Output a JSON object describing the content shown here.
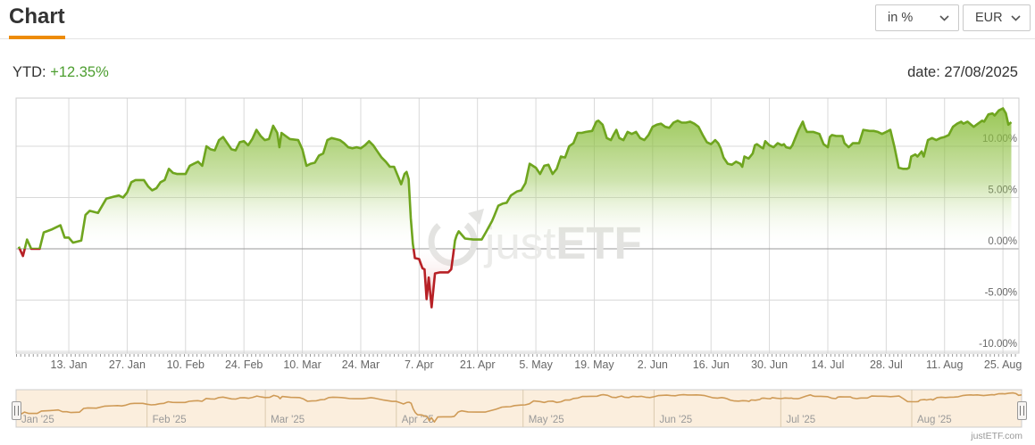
{
  "header": {
    "title": "Chart",
    "unit_value": "in %",
    "currency_value": "EUR"
  },
  "summary": {
    "ytd_label": "YTD:",
    "ytd_value": "+12.35%",
    "date_text": "date: 27/08/2025"
  },
  "watermark": {
    "text_light": "just",
    "text_bold": "ETF"
  },
  "footer": {
    "branding": "justETF.com"
  },
  "colors": {
    "accent_orange": "#ed8b07",
    "positive_green_text": "#4d9e30",
    "grid": "#d9d9d9",
    "zero_line": "#999999",
    "axis_label": "#666666"
  },
  "chart_data": {
    "type": "area",
    "title": "YTD performance in % (EUR), 01/01/2025 - 27/08/2025",
    "x_unit": "days_since_2025-01-01",
    "ylabel": "%",
    "ylim": [
      -10.1,
      14.8
    ],
    "xlim_days": [
      0,
      238
    ],
    "threshold": 0,
    "grid": true,
    "legend": "none",
    "positive_color": "#6fa51f",
    "positive_fill_top": "#8cbf3f",
    "negative_color": "#b72025",
    "negative_fill_bottom": "#d96a6a",
    "y_ticks": [
      {
        "label": "10.00%",
        "value": 10
      },
      {
        "label": "5.00%",
        "value": 5
      },
      {
        "label": "0.00%",
        "value": 0
      },
      {
        "label": "-5.00%",
        "value": -5
      },
      {
        "label": "-10.00%",
        "value": -10
      }
    ],
    "x_ticks": [
      {
        "label": "13. Jan",
        "day": 12
      },
      {
        "label": "27. Jan",
        "day": 26
      },
      {
        "label": "10. Feb",
        "day": 40
      },
      {
        "label": "24. Feb",
        "day": 54
      },
      {
        "label": "10. Mar",
        "day": 68
      },
      {
        "label": "24. Mar",
        "day": 82
      },
      {
        "label": "7. Apr",
        "day": 96
      },
      {
        "label": "21. Apr",
        "day": 110
      },
      {
        "label": "5. May",
        "day": 124
      },
      {
        "label": "19. May",
        "day": 138
      },
      {
        "label": "2. Jun",
        "day": 152
      },
      {
        "label": "16. Jun",
        "day": 166
      },
      {
        "label": "30. Jun",
        "day": 180
      },
      {
        "label": "14. Jul",
        "day": 194
      },
      {
        "label": "28. Jul",
        "day": 208
      },
      {
        "label": "11. Aug",
        "day": 222
      },
      {
        "label": "25. Aug",
        "day": 236
      }
    ],
    "points": [
      [
        0,
        0.2
      ],
      [
        1,
        -0.7
      ],
      [
        2,
        0.9
      ],
      [
        3,
        0
      ],
      [
        5,
        0
      ],
      [
        6,
        1.6
      ],
      [
        8,
        1.9
      ],
      [
        9,
        2.1
      ],
      [
        10,
        2.3
      ],
      [
        11,
        1.1
      ],
      [
        12,
        1.1
      ],
      [
        13,
        0.6
      ],
      [
        15,
        0.8
      ],
      [
        16,
        3.3
      ],
      [
        17,
        3.7
      ],
      [
        19,
        3.5
      ],
      [
        21,
        4.9
      ],
      [
        23,
        5.1
      ],
      [
        24,
        5.2
      ],
      [
        25,
        5
      ],
      [
        26,
        5.5
      ],
      [
        27,
        6.5
      ],
      [
        28,
        6.7
      ],
      [
        30,
        6.7
      ],
      [
        31,
        6.1
      ],
      [
        32,
        5.7
      ],
      [
        33,
        5.9
      ],
      [
        34,
        6.5
      ],
      [
        35,
        6.7
      ],
      [
        36,
        7.8
      ],
      [
        37,
        7.4
      ],
      [
        38,
        7.3
      ],
      [
        40,
        7.3
      ],
      [
        41,
        8.1
      ],
      [
        42,
        8.3
      ],
      [
        43,
        8.5
      ],
      [
        44,
        8.1
      ],
      [
        45,
        10
      ],
      [
        46,
        9.7
      ],
      [
        47,
        9.6
      ],
      [
        48,
        10.6
      ],
      [
        49,
        10.9
      ],
      [
        50,
        10.3
      ],
      [
        51,
        9.7
      ],
      [
        52,
        9.6
      ],
      [
        53,
        10.4
      ],
      [
        54,
        10.5
      ],
      [
        55,
        10.1
      ],
      [
        56,
        10.7
      ],
      [
        57,
        11.6
      ],
      [
        58,
        11
      ],
      [
        59,
        10.6
      ],
      [
        60,
        10.7
      ],
      [
        61,
        12
      ],
      [
        62,
        11.3
      ],
      [
        62.5,
        9.9
      ],
      [
        63,
        11.3
      ],
      [
        64,
        11
      ],
      [
        65,
        10.7
      ],
      [
        67,
        10.6
      ],
      [
        68,
        9.7
      ],
      [
        69,
        8.1
      ],
      [
        70,
        8.3
      ],
      [
        71,
        8.4
      ],
      [
        72,
        9.1
      ],
      [
        73,
        9.3
      ],
      [
        74,
        10.6
      ],
      [
        75,
        10.8
      ],
      [
        76,
        10.7
      ],
      [
        77,
        10.6
      ],
      [
        78,
        10.3
      ],
      [
        79,
        9.9
      ],
      [
        80,
        9.8
      ],
      [
        81,
        9.9
      ],
      [
        82,
        9.8
      ],
      [
        83,
        10.1
      ],
      [
        84,
        10.5
      ],
      [
        85,
        10.1
      ],
      [
        86,
        9.5
      ],
      [
        87,
        8.9
      ],
      [
        88,
        8.5
      ],
      [
        89,
        8
      ],
      [
        90,
        8
      ],
      [
        91,
        7
      ],
      [
        91.7,
        6.3
      ],
      [
        92.5,
        7.3
      ],
      [
        93,
        7.5
      ],
      [
        93.5,
        6.8
      ],
      [
        94,
        3
      ],
      [
        94.5,
        0.5
      ],
      [
        95,
        -0.9
      ],
      [
        96,
        -1
      ],
      [
        96.8,
        -1.9
      ],
      [
        97.3,
        -2
      ],
      [
        97.8,
        -4.9
      ],
      [
        98.3,
        -2.8
      ],
      [
        99,
        -5.7
      ],
      [
        99.8,
        -2.4
      ],
      [
        101,
        -2.3
      ],
      [
        103,
        -2.3
      ],
      [
        103.7,
        -2
      ],
      [
        104.2,
        -0.5
      ],
      [
        104.6,
        0.8
      ],
      [
        105,
        1.3
      ],
      [
        105.5,
        1.7
      ],
      [
        107,
        1
      ],
      [
        109,
        0.9
      ],
      [
        111,
        0.9
      ],
      [
        112,
        1.6
      ],
      [
        113.5,
        2.7
      ],
      [
        114,
        3.2
      ],
      [
        115,
        4.2
      ],
      [
        116,
        4.4
      ],
      [
        117,
        4.5
      ],
      [
        118,
        5.2
      ],
      [
        119.5,
        5.6
      ],
      [
        120.5,
        5.7
      ],
      [
        121.5,
        6.4
      ],
      [
        122.5,
        8.3
      ],
      [
        124,
        7.9
      ],
      [
        125,
        7.3
      ],
      [
        126,
        8.1
      ],
      [
        127,
        8.2
      ],
      [
        128,
        7.3
      ],
      [
        129,
        7.8
      ],
      [
        130,
        9
      ],
      [
        131,
        8.9
      ],
      [
        132,
        10
      ],
      [
        133,
        10.3
      ],
      [
        134,
        11.3
      ],
      [
        135,
        11.3
      ],
      [
        136,
        11.4
      ],
      [
        137.5,
        11.5
      ],
      [
        138.5,
        12.4
      ],
      [
        139,
        12.5
      ],
      [
        140,
        12.1
      ],
      [
        141,
        10.8
      ],
      [
        142,
        10.6
      ],
      [
        142.6,
        11.1
      ],
      [
        143.3,
        11.6
      ],
      [
        144,
        10.8
      ],
      [
        145,
        10.6
      ],
      [
        146,
        11.4
      ],
      [
        147,
        11.2
      ],
      [
        148,
        11.4
      ],
      [
        149,
        10.8
      ],
      [
        150,
        10.6
      ],
      [
        151,
        11.1
      ],
      [
        152,
        11.9
      ],
      [
        153,
        12.1
      ],
      [
        154,
        12.2
      ],
      [
        155,
        11.9
      ],
      [
        156,
        11.8
      ],
      [
        157,
        12.3
      ],
      [
        158,
        12.5
      ],
      [
        159,
        12.3
      ],
      [
        160,
        12.3
      ],
      [
        161,
        12.4
      ],
      [
        162,
        12.2
      ],
      [
        163,
        11.9
      ],
      [
        164,
        11.1
      ],
      [
        165,
        10.4
      ],
      [
        166,
        10.2
      ],
      [
        167,
        10.6
      ],
      [
        167.7,
        10.3
      ],
      [
        168.3,
        9.8
      ],
      [
        169,
        8.9
      ],
      [
        170,
        8.3
      ],
      [
        171,
        8.2
      ],
      [
        172,
        8.5
      ],
      [
        173,
        8.3
      ],
      [
        173.5,
        8
      ],
      [
        174,
        9
      ],
      [
        175,
        8.8
      ],
      [
        176,
        9.3
      ],
      [
        176.5,
        10.1
      ],
      [
        177,
        10.2
      ],
      [
        178,
        9.9
      ],
      [
        178.5,
        9.8
      ],
      [
        179,
        10.5
      ],
      [
        180,
        10.1
      ],
      [
        181,
        9.9
      ],
      [
        182,
        10.3
      ],
      [
        183,
        10.1
      ],
      [
        183.5,
        10.2
      ],
      [
        184,
        9.9
      ],
      [
        185,
        9.8
      ],
      [
        185.5,
        10.1
      ],
      [
        186,
        10.6
      ],
      [
        187,
        11.6
      ],
      [
        188,
        12.4
      ],
      [
        188.5,
        11.8
      ],
      [
        189,
        11.4
      ],
      [
        190.5,
        11.4
      ],
      [
        192,
        11.2
      ],
      [
        193,
        10.2
      ],
      [
        194,
        9.9
      ],
      [
        194.5,
        10.9
      ],
      [
        195,
        11.1
      ],
      [
        196,
        11
      ],
      [
        197.5,
        11
      ],
      [
        198,
        10.3
      ],
      [
        199,
        9.9
      ],
      [
        199.5,
        10.1
      ],
      [
        200,
        10.3
      ],
      [
        201.5,
        10.3
      ],
      [
        202.5,
        11.6
      ],
      [
        204,
        11.5
      ],
      [
        205,
        11.5
      ],
      [
        206,
        11.4
      ],
      [
        207,
        11.2
      ],
      [
        208,
        11.4
      ],
      [
        209,
        11.6
      ],
      [
        210,
        9.9
      ],
      [
        211,
        7.9
      ],
      [
        212,
        7.8
      ],
      [
        213,
        7.8
      ],
      [
        213.5,
        7.9
      ],
      [
        214,
        9
      ],
      [
        215,
        9.2
      ],
      [
        215.5,
        9
      ],
      [
        216.5,
        9.5
      ],
      [
        217,
        9
      ],
      [
        218,
        10.6
      ],
      [
        219,
        10.8
      ],
      [
        220,
        10.6
      ],
      [
        221,
        10.8
      ],
      [
        222,
        10.9
      ],
      [
        223,
        11.1
      ],
      [
        224,
        11.9
      ],
      [
        225,
        12.2
      ],
      [
        226,
        12.4
      ],
      [
        226.5,
        12.2
      ],
      [
        227.5,
        12.4
      ],
      [
        229,
        11.9
      ],
      [
        230,
        12.2
      ],
      [
        231,
        12.5
      ],
      [
        231.5,
        12.4
      ],
      [
        232.5,
        13.1
      ],
      [
        233.5,
        13.2
      ],
      [
        234,
        13
      ],
      [
        235,
        13.5
      ],
      [
        236,
        13.7
      ],
      [
        236.7,
        13.2
      ],
      [
        237.3,
        12.1
      ],
      [
        238,
        12.35
      ]
    ],
    "navigator": {
      "bg": "#fbeedd",
      "line_color": "#cf9b57",
      "separator_color": "#dbcaaf",
      "months": [
        {
          "label": "Jan '25",
          "day": 0
        },
        {
          "label": "Feb '25",
          "day": 31
        },
        {
          "label": "Mar '25",
          "day": 59
        },
        {
          "label": "Apr '25",
          "day": 90
        },
        {
          "label": "May '25",
          "day": 120
        },
        {
          "label": "Jun '25",
          "day": 151
        },
        {
          "label": "Jul '25",
          "day": 181
        },
        {
          "label": "Aug '25",
          "day": 212
        }
      ]
    }
  }
}
